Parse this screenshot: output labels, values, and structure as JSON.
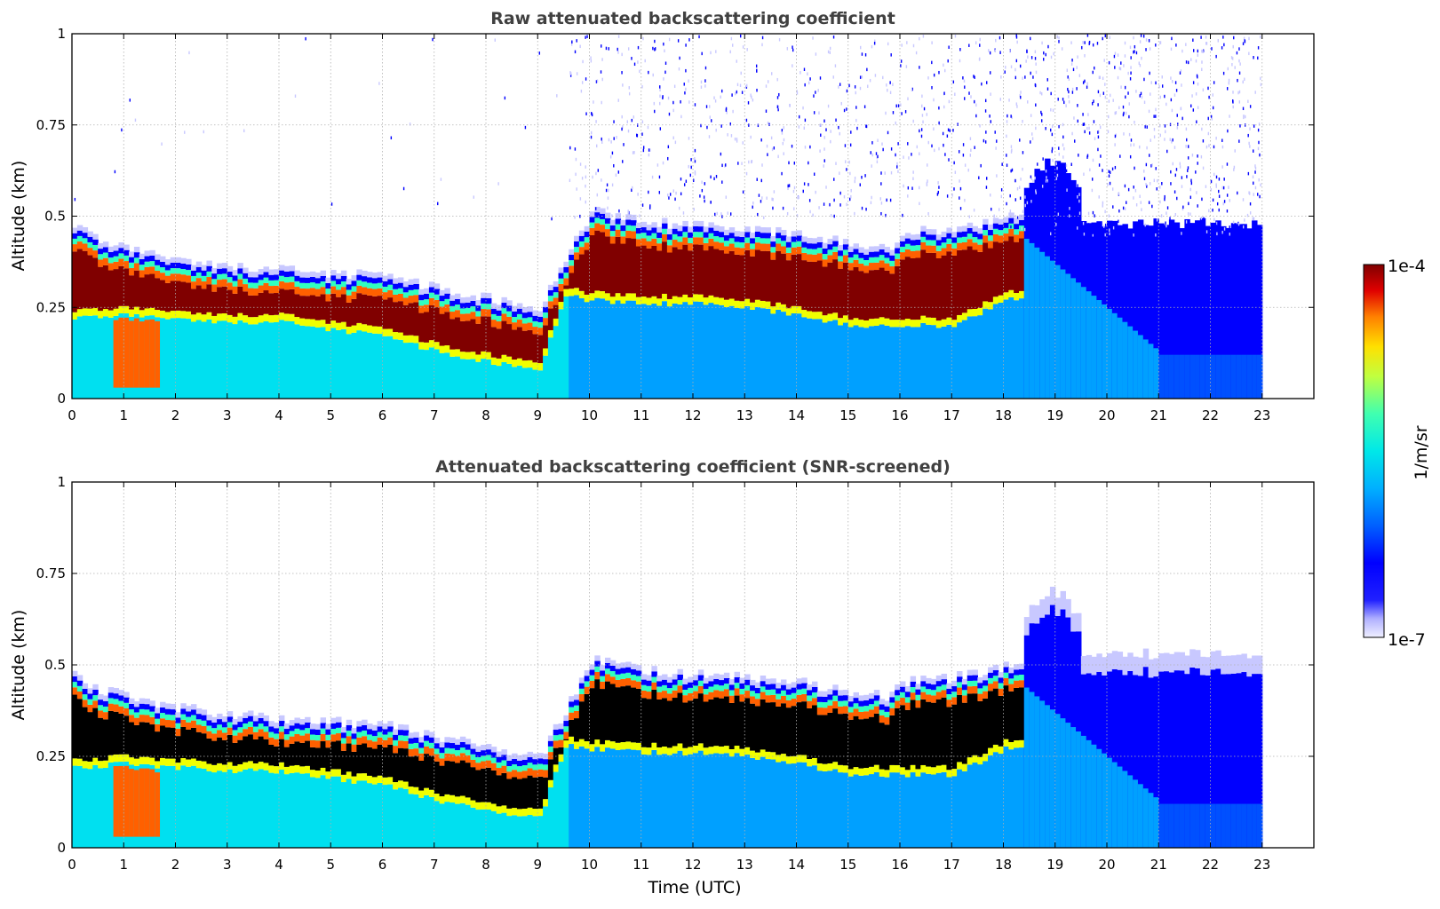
{
  "chart_data": [
    {
      "type": "heatmap",
      "title": "Raw attenuated backscattering coefficient",
      "xlabel": "",
      "ylabel": "Altitude (km)",
      "xlim": [
        0,
        24
      ],
      "ylim": [
        0,
        1
      ],
      "xticks": [
        0,
        1,
        2,
        3,
        4,
        5,
        6,
        7,
        8,
        9,
        10,
        11,
        12,
        13,
        14,
        15,
        16,
        17,
        18,
        19,
        20,
        21,
        22,
        23
      ],
      "yticks": [
        0,
        0.25,
        0.5,
        0.75,
        1
      ],
      "ytick_labels": [
        "0",
        "0.25",
        "0.5",
        "0.75",
        "1"
      ],
      "grid": true,
      "data_end_hour": 23,
      "screened": false,
      "layer_top_km": [
        [
          0,
          0.46
        ],
        [
          0.5,
          0.42
        ],
        [
          1,
          0.4
        ],
        [
          2,
          0.37
        ],
        [
          3,
          0.35
        ],
        [
          4,
          0.34
        ],
        [
          5,
          0.33
        ],
        [
          6,
          0.32
        ],
        [
          7,
          0.29
        ],
        [
          8,
          0.26
        ],
        [
          9,
          0.23
        ],
        [
          9.5,
          0.36
        ],
        [
          10,
          0.5
        ],
        [
          11,
          0.47
        ],
        [
          12,
          0.46
        ],
        [
          13,
          0.45
        ],
        [
          14,
          0.44
        ],
        [
          15,
          0.41
        ],
        [
          15.8,
          0.4
        ],
        [
          16,
          0.44
        ],
        [
          17,
          0.45
        ],
        [
          18,
          0.48
        ],
        [
          18.2,
          0.48
        ]
      ],
      "layer_bottom_km": [
        [
          0,
          0.22
        ],
        [
          1,
          0.23
        ],
        [
          2,
          0.22
        ],
        [
          3,
          0.21
        ],
        [
          4,
          0.21
        ],
        [
          5,
          0.19
        ],
        [
          6,
          0.17
        ],
        [
          7,
          0.13
        ],
        [
          8,
          0.1
        ],
        [
          9,
          0.08
        ],
        [
          9.5,
          0.28
        ],
        [
          10,
          0.27
        ],
        [
          11,
          0.26
        ],
        [
          12,
          0.26
        ],
        [
          13,
          0.25
        ],
        [
          14,
          0.23
        ],
        [
          15,
          0.2
        ],
        [
          16,
          0.2
        ],
        [
          17,
          0.2
        ],
        [
          18,
          0.27
        ]
      ],
      "noise_level": "sparse before 9.5 h, dense after 9.5 h"
    },
    {
      "type": "heatmap",
      "title": "Attenuated backscattering coefficient (SNR-screened)",
      "xlabel": "Time (UTC)",
      "ylabel": "Altitude (km)",
      "xlim": [
        0,
        24
      ],
      "ylim": [
        0,
        1
      ],
      "xticks": [
        0,
        1,
        2,
        3,
        4,
        5,
        6,
        7,
        8,
        9,
        10,
        11,
        12,
        13,
        14,
        15,
        16,
        17,
        18,
        19,
        20,
        21,
        22,
        23
      ],
      "yticks": [
        0,
        0.25,
        0.5,
        0.75,
        1
      ],
      "ytick_labels": [
        "0",
        "0.25",
        "0.5",
        "0.75",
        "1"
      ],
      "grid": true,
      "data_end_hour": 23,
      "screened": true
    }
  ],
  "colorbar": {
    "label": "1/m/sr",
    "max_label": "1e-4",
    "min_label": "1e-7",
    "scale": "log",
    "colormap": "jet with white-lavender low end",
    "colors": [
      "#f0f0ff",
      "#c8c8ff",
      "#8080ff",
      "#0000ff",
      "#0050ff",
      "#00a0ff",
      "#00e0f0",
      "#30ffc0",
      "#a0ff50",
      "#f0ff00",
      "#ffc000",
      "#ff6000",
      "#e00000",
      "#800000"
    ]
  }
}
